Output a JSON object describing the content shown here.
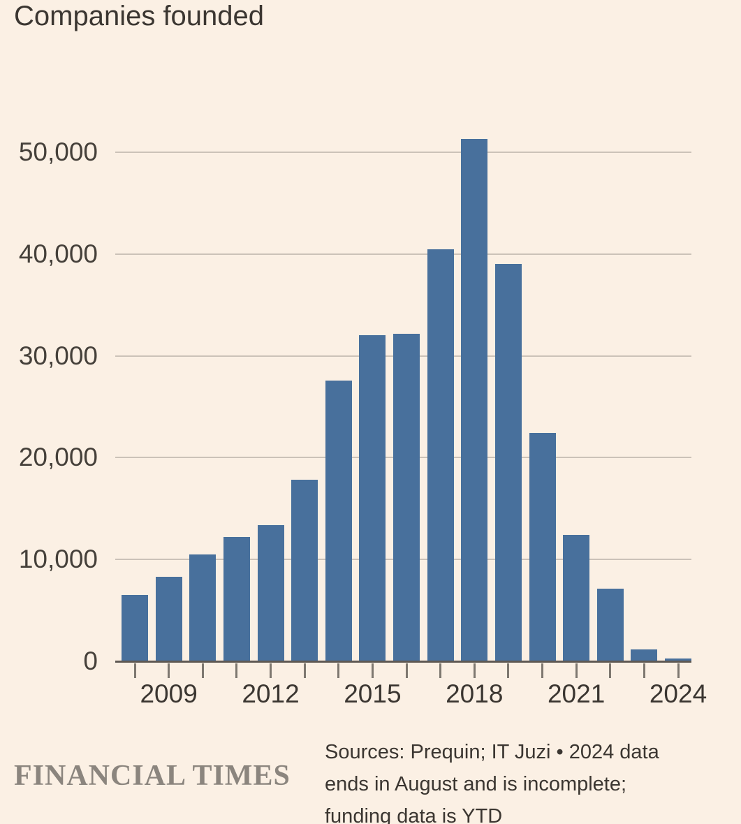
{
  "page": {
    "background_color": "#fbf0e4"
  },
  "chart_data": {
    "type": "bar",
    "title": "Companies founded",
    "categories": [
      2008,
      2009,
      2010,
      2011,
      2012,
      2013,
      2014,
      2015,
      2016,
      2017,
      2018,
      2019,
      2020,
      2021,
      2022,
      2023,
      2024
    ],
    "values": [
      6500,
      8300,
      10500,
      12200,
      13400,
      17800,
      27600,
      32000,
      32200,
      40500,
      51300,
      39000,
      22400,
      12400,
      7100,
      1200,
      300
    ],
    "bar_color": "#48709c",
    "background_color": "#fbf0e4",
    "gridline_color": "#cbc2b8",
    "axis_line_color": "#5f5953",
    "xlabel": "",
    "ylabel": "",
    "ylim": [
      0,
      55000
    ],
    "grid": "horizontal-only",
    "legend": "none",
    "yticks": [
      {
        "value": 0,
        "label": "0"
      },
      {
        "value": 10000,
        "label": "10,000"
      },
      {
        "value": 20000,
        "label": "20,000"
      },
      {
        "value": 30000,
        "label": "30,000"
      },
      {
        "value": 40000,
        "label": "40,000"
      },
      {
        "value": 50000,
        "label": "50,000"
      }
    ],
    "xtick_labels": [
      "2009",
      "2012",
      "2015",
      "2018",
      "2021",
      "2024"
    ]
  },
  "footer": {
    "brand": "FINANCIAL TIMES",
    "source_lines": [
      "Sources: Prequin; IT Juzi • 2024 data",
      "ends in August and is incomplete;",
      "funding data is YTD"
    ]
  }
}
